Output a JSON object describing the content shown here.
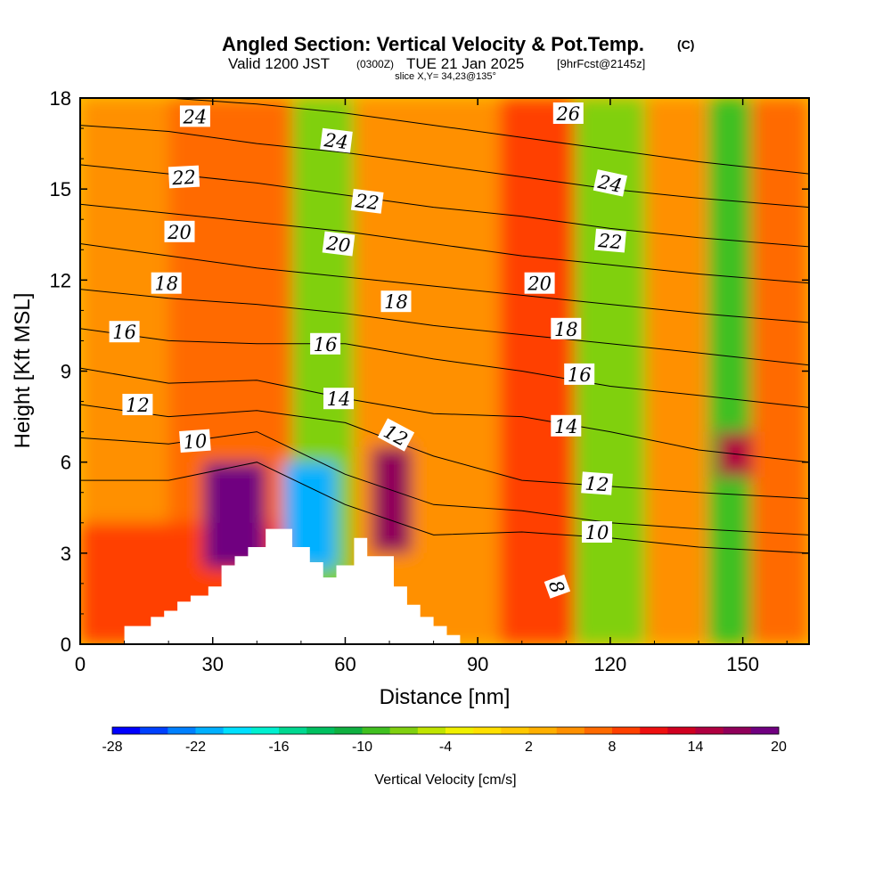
{
  "header": {
    "title": "Angled Section: Vertical Velocity & Pot.Temp.",
    "title_unit": "(C)",
    "valid_prefix": "Valid 1200 JST",
    "valid_utc": "(0300Z)",
    "valid_date": "TUE 21 Jan 2025",
    "forecast": "[9hrFcst@2145z]",
    "slice": "slice X,Y= 34,23@135°"
  },
  "chart_data": {
    "type": "heatmap",
    "title": "Angled Section: Vertical Velocity & Pot.Temp.",
    "xlabel": "Distance [nm]",
    "ylabel": "Height [Kft MSL]",
    "xlim": [
      0,
      165
    ],
    "ylim": [
      0,
      18
    ],
    "x_ticks": [
      "0",
      "30",
      "60",
      "90",
      "120",
      "150"
    ],
    "y_ticks": [
      "0",
      "3",
      "6",
      "9",
      "12",
      "15",
      "18"
    ],
    "colorbar": {
      "label": "Vertical Velocity [cm/s]",
      "tick_labels": [
        "-28",
        "-22",
        "-16",
        "-10",
        "-4",
        "2",
        "8",
        "14",
        "20"
      ],
      "colors": [
        "#0000ff",
        "#0040ff",
        "#0080ff",
        "#00b0ff",
        "#00e0ff",
        "#00f0d0",
        "#00d890",
        "#00c060",
        "#10b040",
        "#40c020",
        "#80d010",
        "#c0e400",
        "#f0f000",
        "#ffe000",
        "#ffc800",
        "#ffb000",
        "#ff9000",
        "#ff6a00",
        "#ff4000",
        "#ee1010",
        "#d00020",
        "#b00040",
        "#90005a",
        "#700080"
      ]
    },
    "velocity_cells": [
      {
        "x": [
          0,
          20
        ],
        "y": [
          0,
          18
        ],
        "value": 5
      },
      {
        "x": [
          20,
          48
        ],
        "y": [
          0,
          18
        ],
        "value": 6
      },
      {
        "x": [
          48,
          62
        ],
        "y": [
          0,
          18
        ],
        "value": -8
      },
      {
        "x": [
          62,
          95
        ],
        "y": [
          0,
          18
        ],
        "value": 4
      },
      {
        "x": [
          95,
          112
        ],
        "y": [
          0,
          18
        ],
        "value": 9
      },
      {
        "x": [
          112,
          128
        ],
        "y": [
          0,
          18
        ],
        "value": -8
      },
      {
        "x": [
          128,
          142
        ],
        "y": [
          0,
          18
        ],
        "value": 4
      },
      {
        "x": [
          142,
          152
        ],
        "y": [
          0,
          18
        ],
        "value": -10
      },
      {
        "x": [
          152,
          165
        ],
        "y": [
          0,
          18
        ],
        "value": 6
      },
      {
        "x": [
          0,
          50
        ],
        "y": [
          0,
          4
        ],
        "value": 8
      },
      {
        "x": [
          28,
          42
        ],
        "y": [
          2.5,
          6
        ],
        "value": 20
      },
      {
        "x": [
          46,
          58
        ],
        "y": [
          2.5,
          6
        ],
        "value": -22
      },
      {
        "x": [
          66,
          75
        ],
        "y": [
          3,
          6.5
        ],
        "value": 16
      },
      {
        "x": [
          144,
          152
        ],
        "y": [
          5.5,
          7
        ],
        "value": 15
      }
    ],
    "terrain": {
      "x": [
        0,
        10,
        10,
        16,
        16,
        19,
        19,
        22,
        22,
        25,
        25,
        29,
        29,
        32,
        32,
        35,
        35,
        38,
        38,
        42,
        42,
        48,
        48,
        52,
        52,
        55,
        55,
        58,
        58,
        62,
        62,
        65,
        65,
        71,
        71,
        74,
        74,
        77,
        77,
        80,
        80,
        83,
        83,
        86,
        86,
        90,
        90,
        165
      ],
      "y": [
        0,
        0,
        0.6,
        0.6,
        0.9,
        0.9,
        1.1,
        1.1,
        1.4,
        1.4,
        1.6,
        1.6,
        1.9,
        1.9,
        2.6,
        2.6,
        2.9,
        2.9,
        3.2,
        3.2,
        3.8,
        3.8,
        3.2,
        3.2,
        2.7,
        2.7,
        2.2,
        2.2,
        2.6,
        2.6,
        3.5,
        3.5,
        2.9,
        2.9,
        1.9,
        1.9,
        1.3,
        1.3,
        0.9,
        0.9,
        0.6,
        0.6,
        0.3,
        0.3,
        0,
        0,
        0,
        0
      ]
    },
    "theta_lines": [
      {
        "x": [
          0,
          20,
          40,
          60,
          80,
          100,
          120,
          140,
          165
        ],
        "y": [
          5.4,
          5.4,
          6.0,
          4.6,
          3.6,
          3.7,
          3.5,
          3.2,
          3.0
        ]
      },
      {
        "x": [
          0,
          20,
          40,
          60,
          80,
          100,
          120,
          140,
          165
        ],
        "y": [
          6.8,
          6.6,
          7.0,
          5.6,
          4.6,
          4.4,
          4.0,
          3.8,
          3.6
        ]
      },
      {
        "x": [
          0,
          20,
          40,
          60,
          80,
          100,
          120,
          140,
          165
        ],
        "y": [
          7.9,
          7.5,
          7.7,
          7.3,
          6.2,
          5.4,
          5.2,
          5.0,
          4.8
        ]
      },
      {
        "x": [
          0,
          20,
          40,
          60,
          80,
          100,
          120,
          140,
          165
        ],
        "y": [
          9.1,
          8.6,
          8.7,
          8.1,
          7.6,
          7.5,
          7.0,
          6.4,
          6.0
        ]
      },
      {
        "x": [
          0,
          20,
          40,
          60,
          80,
          100,
          120,
          140,
          165
        ],
        "y": [
          10.4,
          10.0,
          9.9,
          9.9,
          9.4,
          9.0,
          8.5,
          8.2,
          7.8
        ]
      },
      {
        "x": [
          0,
          20,
          40,
          60,
          80,
          100,
          120,
          140,
          165
        ],
        "y": [
          11.7,
          11.4,
          11.2,
          10.9,
          10.5,
          10.2,
          9.9,
          9.6,
          9.2
        ]
      },
      {
        "x": [
          0,
          20,
          40,
          60,
          80,
          100,
          120,
          140,
          165
        ],
        "y": [
          13.2,
          12.8,
          12.4,
          12.1,
          11.8,
          11.5,
          11.2,
          10.9,
          10.6
        ]
      },
      {
        "x": [
          0,
          20,
          40,
          60,
          80,
          100,
          120,
          140,
          165
        ],
        "y": [
          14.5,
          14.2,
          13.9,
          13.6,
          13.2,
          12.8,
          12.5,
          12.2,
          11.9
        ]
      },
      {
        "x": [
          0,
          20,
          40,
          60,
          80,
          100,
          120,
          140,
          165
        ],
        "y": [
          15.8,
          15.5,
          15.2,
          14.8,
          14.4,
          14.1,
          13.7,
          13.4,
          13.1
        ]
      },
      {
        "x": [
          0,
          20,
          40,
          60,
          80,
          100,
          120,
          140,
          165
        ],
        "y": [
          17.1,
          16.9,
          16.5,
          16.2,
          15.8,
          15.4,
          15.0,
          14.7,
          14.4
        ]
      },
      {
        "x": [
          0,
          20,
          40,
          60,
          80,
          100,
          120,
          140,
          165
        ],
        "y": [
          18.0,
          18.0,
          17.8,
          17.5,
          17.1,
          16.7,
          16.3,
          15.9,
          15.5
        ]
      }
    ],
    "contour_labels": [
      {
        "text": "24",
        "x": 26,
        "y": 17.4,
        "angle": 0
      },
      {
        "text": "22",
        "x": 23.5,
        "y": 15.4,
        "angle": -3
      },
      {
        "text": "20",
        "x": 22.5,
        "y": 13.6,
        "angle": 0
      },
      {
        "text": "18",
        "x": 19.5,
        "y": 11.9,
        "angle": 0
      },
      {
        "text": "16",
        "x": 10,
        "y": 10.3,
        "angle": 0
      },
      {
        "text": "12",
        "x": 13,
        "y": 7.9,
        "angle": 0
      },
      {
        "text": "10",
        "x": 26,
        "y": 6.7,
        "angle": -4
      },
      {
        "text": "24",
        "x": 58,
        "y": 16.6,
        "angle": 7
      },
      {
        "text": "22",
        "x": 65,
        "y": 14.6,
        "angle": 7
      },
      {
        "text": "20",
        "x": 58.5,
        "y": 13.2,
        "angle": 7
      },
      {
        "text": "18",
        "x": 71.5,
        "y": 11.3,
        "angle": 0
      },
      {
        "text": "16",
        "x": 55.5,
        "y": 9.9,
        "angle": 0
      },
      {
        "text": "14",
        "x": 58.5,
        "y": 8.1,
        "angle": 0
      },
      {
        "text": "12",
        "x": 71.5,
        "y": 6.9,
        "angle": 28
      },
      {
        "text": "26",
        "x": 110.5,
        "y": 17.5,
        "angle": 0
      },
      {
        "text": "24",
        "x": 120,
        "y": 15.2,
        "angle": 12
      },
      {
        "text": "22",
        "x": 120,
        "y": 13.3,
        "angle": 5
      },
      {
        "text": "20",
        "x": 104,
        "y": 11.9,
        "angle": 0
      },
      {
        "text": "18",
        "x": 110,
        "y": 10.4,
        "angle": 0
      },
      {
        "text": "16",
        "x": 113,
        "y": 8.9,
        "angle": 0
      },
      {
        "text": "14",
        "x": 110,
        "y": 7.2,
        "angle": 0
      },
      {
        "text": "12",
        "x": 117,
        "y": 5.3,
        "angle": 4
      },
      {
        "text": "10",
        "x": 117,
        "y": 3.7,
        "angle": 0
      },
      {
        "text": "8",
        "x": 108,
        "y": 1.9,
        "angle": 70
      }
    ]
  },
  "colors": {
    "background": "#ffffff",
    "plot_fill": "#ffc800",
    "terrain": "#ffffff",
    "contour": "#000000"
  }
}
